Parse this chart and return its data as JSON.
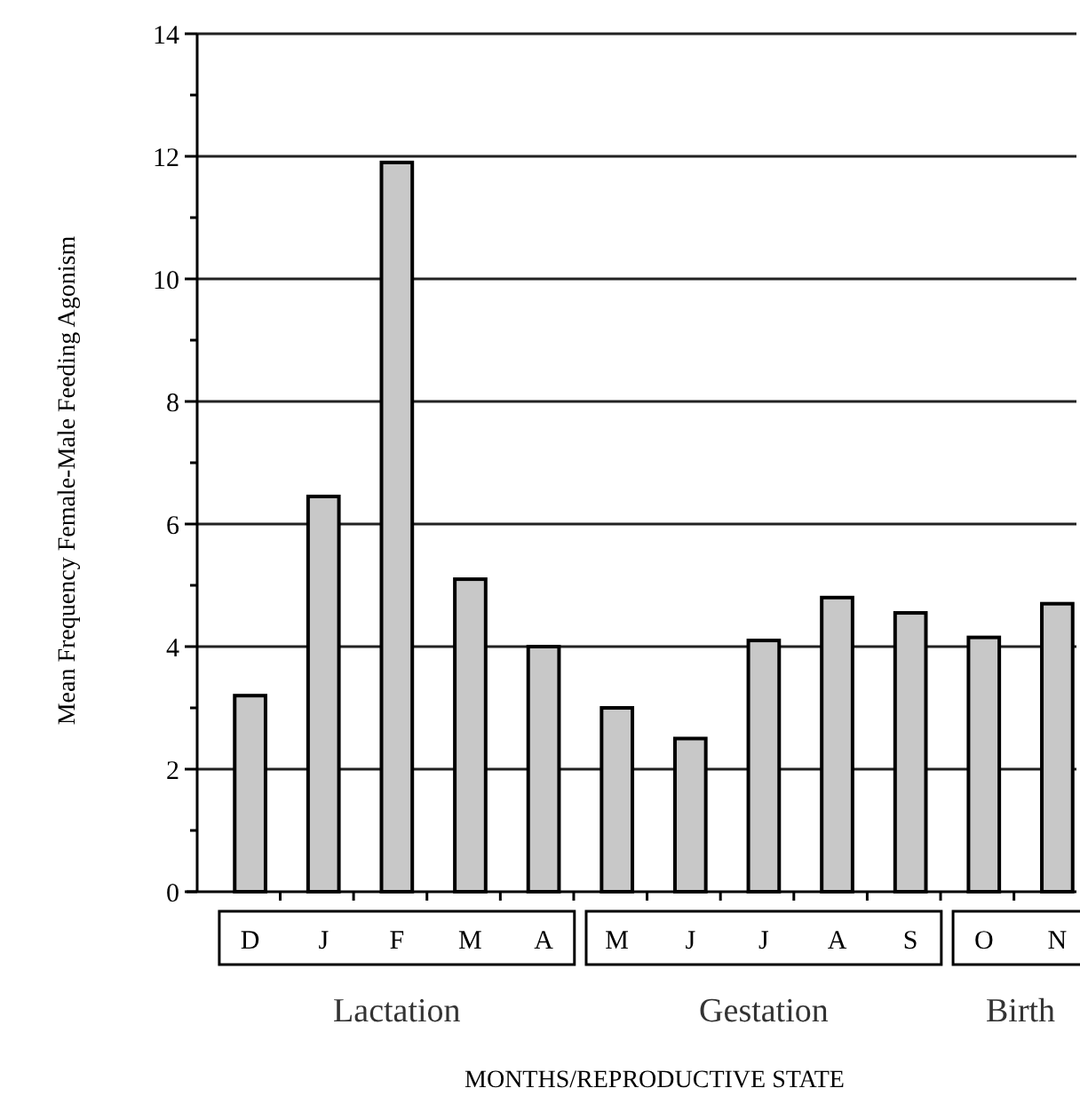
{
  "chart_data": {
    "type": "bar",
    "ylabel": "Mean Frequency Female-Male Feeding Agonism",
    "xlabel": "MONTHS/REPRODUCTIVE STATE",
    "categories": [
      "D",
      "J",
      "F",
      "M",
      "A",
      "M",
      "J",
      "J",
      "A",
      "S",
      "O",
      "N"
    ],
    "values": [
      3.2,
      6.45,
      11.9,
      5.1,
      4.0,
      3.0,
      2.5,
      4.1,
      4.8,
      4.55,
      4.15,
      4.7
    ],
    "color": "#c8c8c8",
    "ylim": [
      0,
      14
    ],
    "yticks": [
      0,
      {
        "value": 1,
        "label": null
      },
      2,
      {
        "value": 3,
        "label": null
      },
      4,
      {
        "value": 5,
        "label": null
      },
      6,
      {
        "value": 7,
        "label": null
      },
      8,
      {
        "value": 9,
        "label": null
      },
      10,
      {
        "value": 11,
        "label": null
      },
      12,
      {
        "value": 13,
        "label": null
      },
      14
    ],
    "grid": "y",
    "annotations": [
      "Lactation",
      "Gestation",
      "Birth"
    ]
  }
}
